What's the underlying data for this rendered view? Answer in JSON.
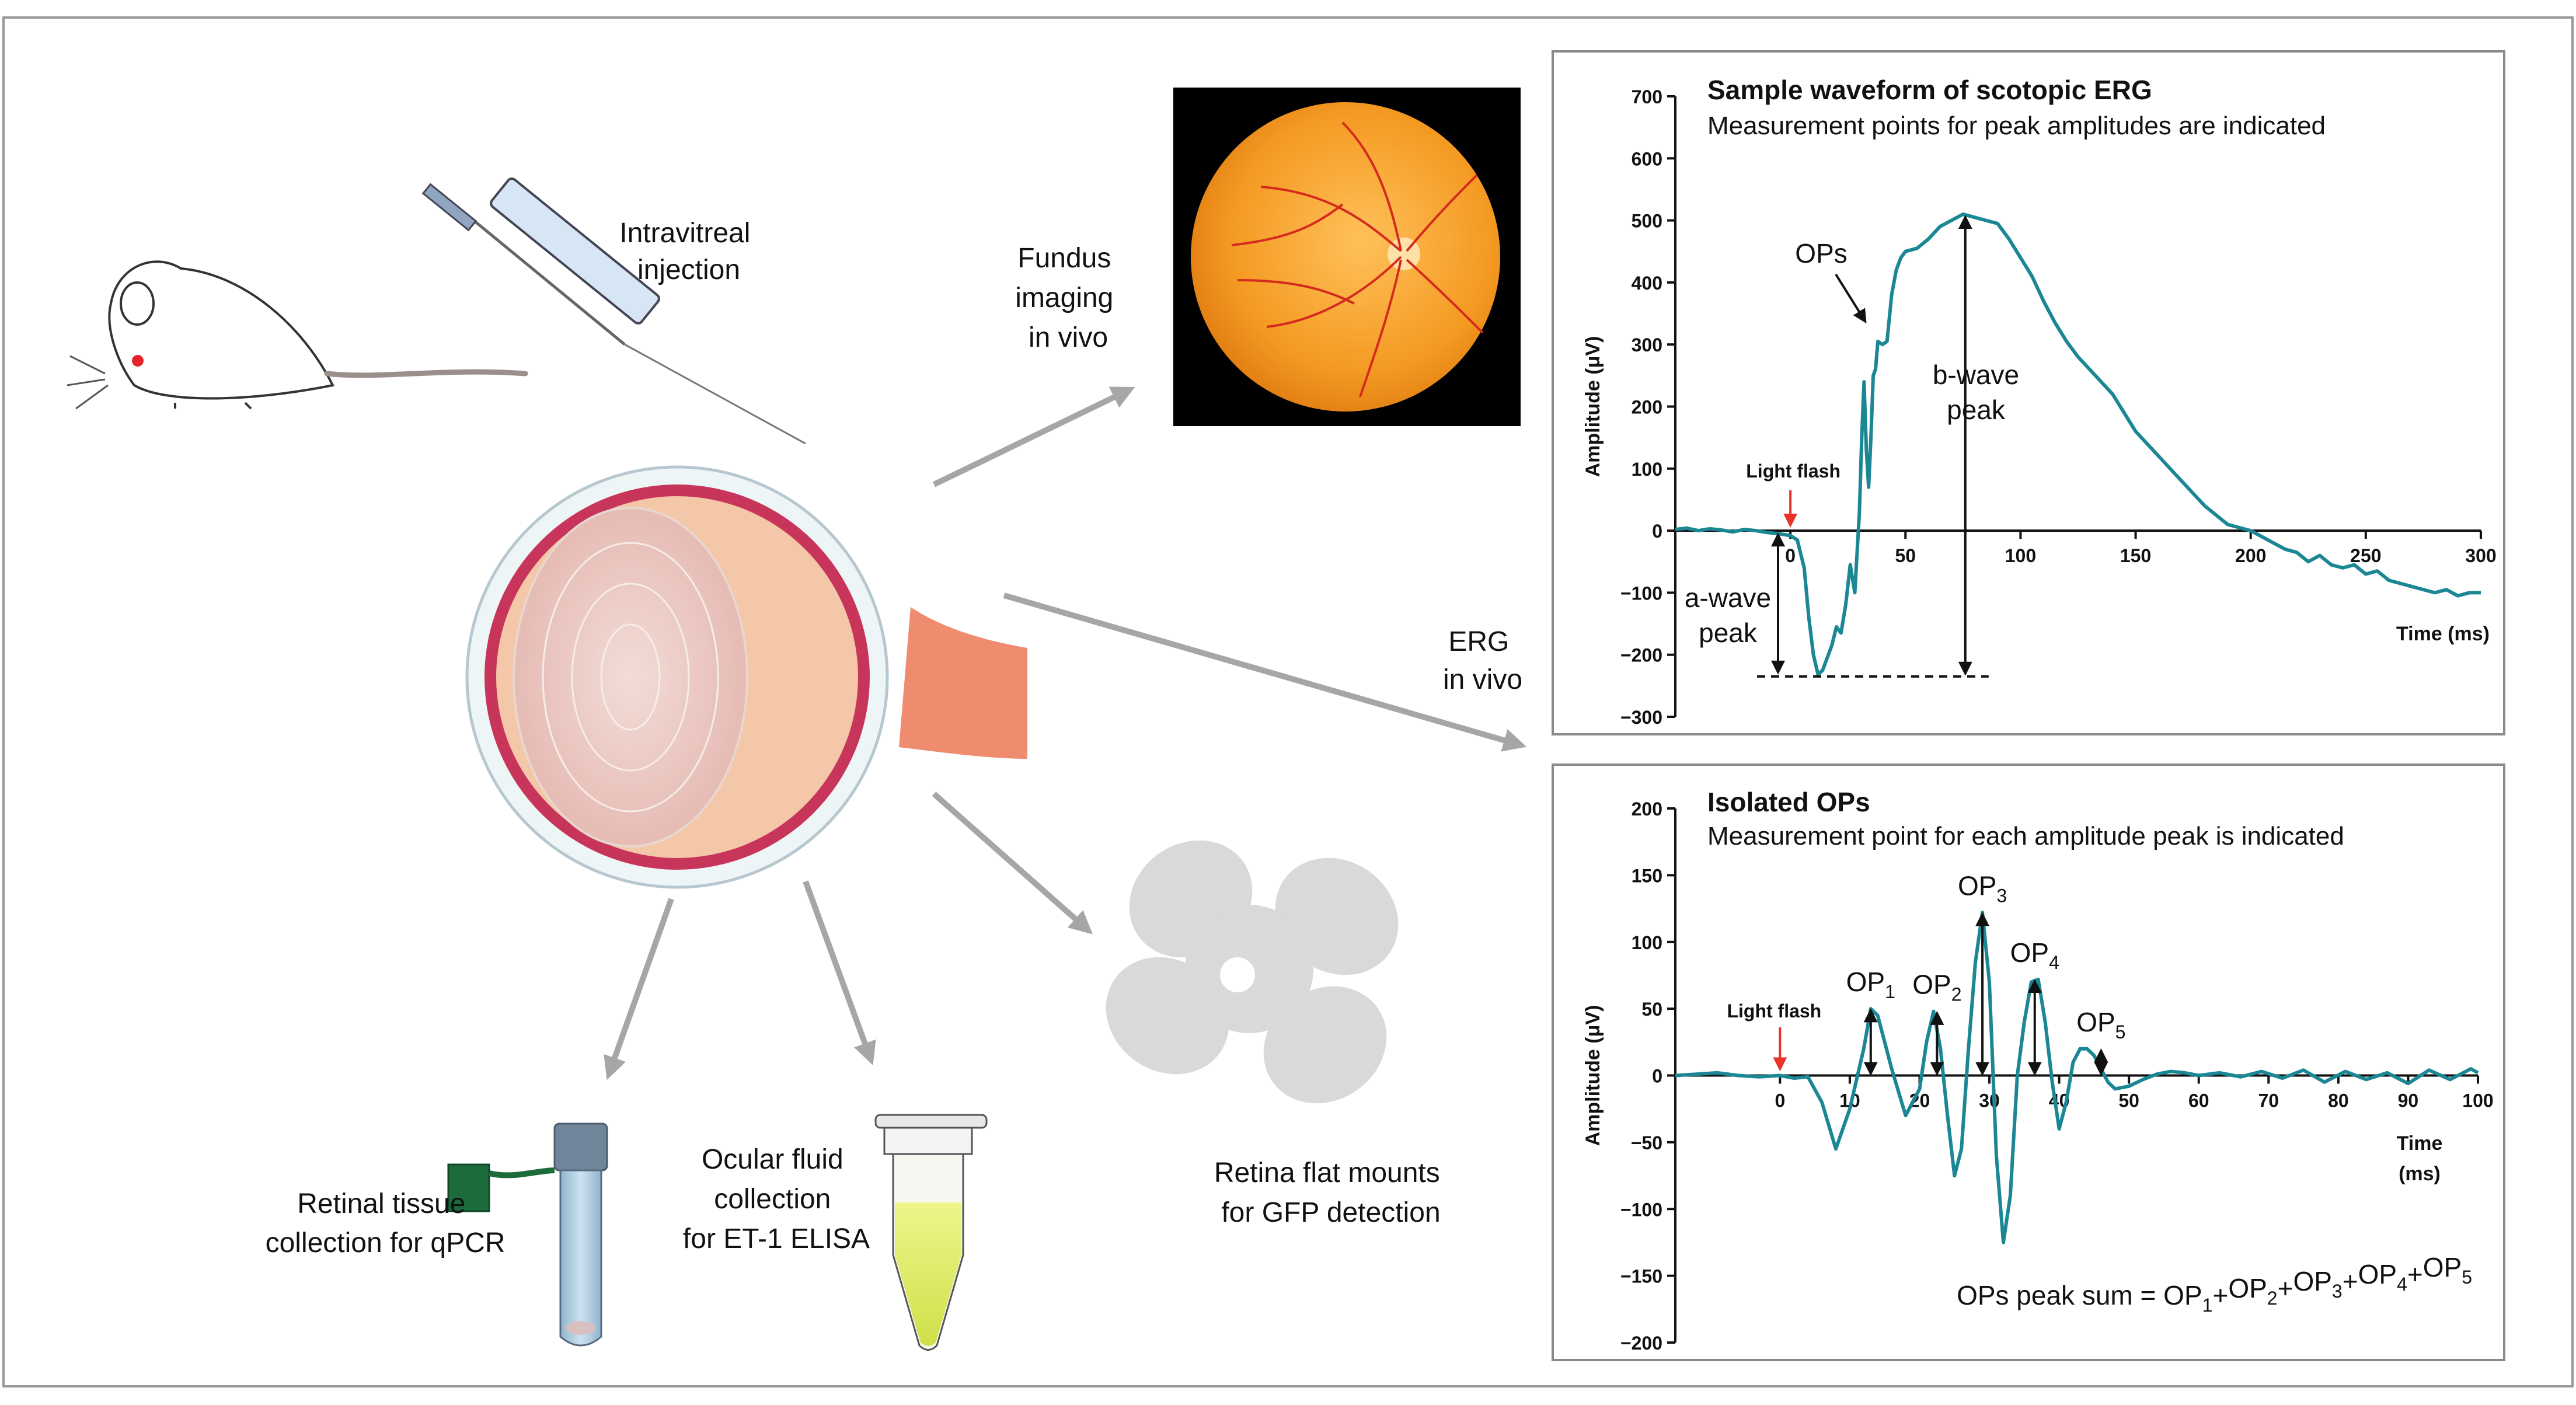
{
  "labels": {
    "injection": [
      "Intravitreal",
      "injection"
    ],
    "fundus": [
      "Fundus",
      "imaging",
      "in vivo"
    ],
    "erg": [
      "ERG",
      "in vivo"
    ],
    "retinal_tissue": [
      "Retinal tissue",
      "collection for qPCR"
    ],
    "ocular_fluid": [
      "Ocular fluid",
      "collection",
      "for ET-1 ELISA"
    ],
    "flat_mounts": [
      "Retina flat mounts",
      "for GFP detection"
    ]
  },
  "chart_data": [
    {
      "type": "line",
      "title": "Sample waveform of scotopic ERG",
      "subtitle": "Measurement points for peak amplitudes are indicated",
      "xlabel": "Time (ms)",
      "ylabel": "Amplitude (μV)",
      "xlim": [
        -50,
        300
      ],
      "ylim": [
        -300,
        700
      ],
      "xticks": [
        0,
        50,
        100,
        150,
        200,
        250,
        300
      ],
      "yticks": [
        -300,
        -200,
        -100,
        0,
        100,
        200,
        300,
        400,
        500,
        600,
        700
      ],
      "color": "#1b8795",
      "series": [
        {
          "name": "scotopic ERG",
          "x": [
            -50,
            -45,
            -40,
            -35,
            -30,
            -25,
            -20,
            -15,
            -10,
            -5,
            0,
            3,
            6,
            8,
            10,
            12,
            14,
            16,
            18,
            20,
            22,
            24,
            26,
            28,
            30,
            31,
            32,
            33,
            34,
            35,
            36,
            37,
            38,
            40,
            42,
            44,
            46,
            48,
            50,
            55,
            60,
            65,
            70,
            75,
            80,
            85,
            90,
            95,
            100,
            105,
            110,
            115,
            120,
            125,
            130,
            140,
            150,
            160,
            170,
            180,
            190,
            200,
            205,
            210,
            215,
            220,
            225,
            230,
            235,
            240,
            245,
            250,
            255,
            260,
            265,
            270,
            275,
            280,
            285,
            290,
            295,
            300
          ],
          "y": [
            2,
            4,
            0,
            3,
            1,
            -2,
            2,
            0,
            -3,
            -5,
            -8,
            -15,
            -60,
            -140,
            -200,
            -232,
            -225,
            -205,
            -185,
            -155,
            -165,
            -120,
            -55,
            -100,
            30,
            150,
            240,
            130,
            70,
            150,
            250,
            260,
            305,
            300,
            305,
            380,
            420,
            440,
            450,
            455,
            470,
            490,
            500,
            510,
            505,
            500,
            495,
            470,
            440,
            410,
            370,
            335,
            305,
            280,
            260,
            220,
            160,
            120,
            80,
            40,
            10,
            0,
            -10,
            -20,
            -30,
            -35,
            -50,
            -40,
            -55,
            -60,
            -55,
            -70,
            -65,
            -80,
            -85,
            -90,
            -95,
            -100,
            -95,
            -105,
            -100,
            -100
          ]
        }
      ],
      "annotations": {
        "light_flash": "Light flash",
        "light_flash_x": 0,
        "ops": "OPs",
        "a_wave": [
          "a-wave",
          "peak"
        ],
        "a_wave_x": 15,
        "a_wave_y": -235,
        "b_wave": [
          "b-wave",
          "peak"
        ],
        "b_wave_x": 76,
        "b_wave_y": 510
      }
    },
    {
      "type": "line",
      "title": "Isolated OPs",
      "subtitle": "Measurement point for each amplitude peak is indicated",
      "xlabel": [
        "Time",
        "(ms)"
      ],
      "ylabel": "Amplitude (μV)",
      "xlim": [
        -15,
        100
      ],
      "ylim": [
        -200,
        200
      ],
      "xticks": [
        0,
        10,
        20,
        30,
        40,
        50,
        60,
        70,
        80,
        90,
        100
      ],
      "yticks": [
        -200,
        -150,
        -100,
        -50,
        0,
        50,
        100,
        150,
        200
      ],
      "color": "#1b8795",
      "series": [
        {
          "name": "Isolated OPs",
          "x": [
            -15,
            -12,
            -9,
            -6,
            -3,
            0,
            2,
            4,
            6,
            8,
            10,
            12,
            13,
            14,
            16,
            18,
            20,
            21,
            22,
            23,
            24,
            25,
            26,
            27,
            28,
            29,
            30,
            31,
            32,
            33,
            34,
            35,
            36,
            37,
            38,
            39,
            40,
            41,
            42,
            43,
            44,
            45,
            46,
            47,
            48,
            50,
            52,
            54,
            56,
            58,
            60,
            63,
            66,
            69,
            72,
            75,
            78,
            81,
            84,
            87,
            90,
            93,
            96,
            99,
            100
          ],
          "y": [
            0,
            1,
            2,
            0,
            -1,
            0,
            -2,
            -1,
            -20,
            -55,
            -25,
            20,
            50,
            45,
            5,
            -30,
            -10,
            25,
            48,
            20,
            -30,
            -75,
            -55,
            20,
            85,
            122,
            70,
            -60,
            -125,
            -90,
            0,
            40,
            70,
            72,
            40,
            -5,
            -40,
            -20,
            10,
            20,
            20,
            15,
            5,
            -5,
            -10,
            -8,
            -3,
            1,
            3,
            2,
            0,
            2,
            -1,
            3,
            -2,
            4,
            -5,
            3,
            -3,
            2,
            -6,
            4,
            -3,
            5,
            2
          ]
        }
      ],
      "peaks": [
        {
          "label": "OP",
          "sub": "1",
          "x": 13,
          "y": 50
        },
        {
          "label": "OP",
          "sub": "2",
          "x": 22.5,
          "y": 48
        },
        {
          "label": "OP",
          "sub": "3",
          "x": 29,
          "y": 122
        },
        {
          "label": "OP",
          "sub": "4",
          "x": 36.5,
          "y": 72
        },
        {
          "label": "OP",
          "sub": "5",
          "x": 46,
          "y": 20
        }
      ],
      "annotations": {
        "light_flash": "Light flash",
        "light_flash_x": 0,
        "sum_label": "OPs peak sum = ",
        "sum_terms": [
          "1",
          "2",
          "3",
          "4",
          "5"
        ]
      }
    }
  ]
}
